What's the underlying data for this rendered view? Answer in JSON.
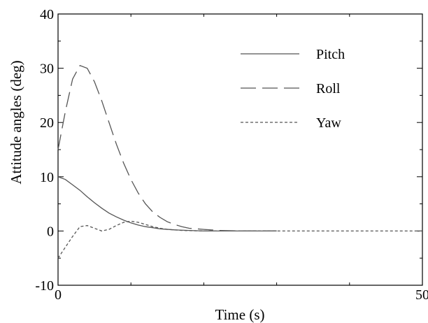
{
  "chart_data": {
    "type": "line",
    "title": "",
    "xlabel": "Time (s)",
    "ylabel": "Attitude angles (deg)",
    "xlim": [
      0,
      50
    ],
    "ylim": [
      -10,
      40
    ],
    "x_ticks": [
      0,
      50
    ],
    "x_minor_ticks": [
      10,
      20,
      30,
      40
    ],
    "y_ticks": [
      -10,
      0,
      10,
      20,
      30,
      40
    ],
    "y_minor_ticks": [
      -5,
      5,
      15,
      25,
      35
    ],
    "grid": false,
    "legend": {
      "position": "top-right",
      "box": false
    },
    "series": [
      {
        "name": "Pitch",
        "style": "solid",
        "color": "#555555",
        "x": [
          0,
          1,
          2,
          3,
          4,
          5,
          6,
          7,
          8,
          9,
          10,
          11,
          12,
          13,
          14,
          16,
          18,
          20,
          25,
          30
        ],
        "y": [
          10,
          9.5,
          8.5,
          7.5,
          6.3,
          5.2,
          4.2,
          3.3,
          2.6,
          2.0,
          1.5,
          1.1,
          0.8,
          0.6,
          0.4,
          0.2,
          0.1,
          0.0,
          0.0,
          0.0
        ]
      },
      {
        "name": "Roll",
        "style": "dashed",
        "color": "#555555",
        "x": [
          0,
          1,
          2,
          3,
          4,
          5,
          6,
          7,
          8,
          9,
          10,
          11,
          12,
          13,
          14,
          15,
          16,
          17,
          18,
          20,
          22,
          25,
          30
        ],
        "y": [
          15,
          22,
          28,
          30.5,
          30,
          27.5,
          24,
          20,
          16,
          12.5,
          9.5,
          7,
          5,
          3.5,
          2.5,
          1.7,
          1.2,
          0.8,
          0.5,
          0.3,
          0.1,
          0.0,
          0.0
        ]
      },
      {
        "name": "Yaw",
        "style": "dotted",
        "color": "#555555",
        "x": [
          0,
          1,
          2,
          3,
          4,
          5,
          6,
          7,
          8,
          9,
          10,
          11,
          12,
          13,
          14,
          15,
          17,
          20,
          25,
          30,
          40,
          50
        ],
        "y": [
          -5,
          -3,
          -1,
          0.8,
          1.0,
          0.5,
          0.0,
          0.3,
          1.0,
          1.6,
          1.8,
          1.6,
          1.2,
          0.8,
          0.5,
          0.3,
          0.1,
          0.0,
          0.0,
          0.0,
          0.0,
          0.0
        ]
      }
    ]
  }
}
